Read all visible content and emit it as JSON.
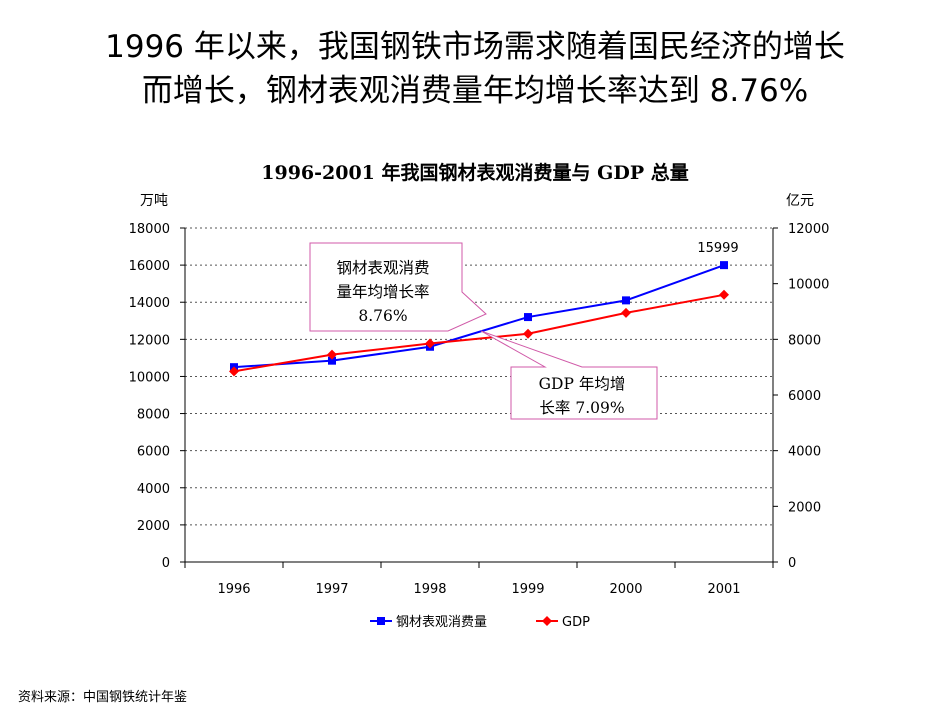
{
  "headline": {
    "line1": "1996 年以来，我国钢铁市场需求随着国民经济的增长",
    "line2": "而增长，钢材表观消费量年均增长率达到 8.76%"
  },
  "chart_data": {
    "type": "line",
    "title": "1996-2001 年我国钢材表观消费量与 GDP 总量",
    "categories": [
      "1996",
      "1997",
      "1998",
      "1999",
      "2000",
      "2001"
    ],
    "y_left": {
      "unit": "万吨",
      "range": [
        0,
        18000
      ],
      "ticks": [
        "0",
        "2000",
        "4000",
        "6000",
        "8000",
        "10000",
        "12000",
        "14000",
        "16000",
        "18000"
      ]
    },
    "y_right": {
      "unit": "亿元",
      "range": [
        0,
        12000
      ],
      "ticks": [
        "0",
        "2000",
        "4000",
        "6000",
        "8000",
        "10000",
        "12000"
      ]
    },
    "grid": "horizontal dotted",
    "series": [
      {
        "name": "钢材表观消费量",
        "axis": "left",
        "color": "#0000ff",
        "marker": "square",
        "values": [
          10500,
          10850,
          11600,
          13200,
          14100,
          15999
        ]
      },
      {
        "name": "GDP",
        "axis": "right",
        "color": "#ff0000",
        "marker": "diamond",
        "values": [
          6850,
          7450,
          7850,
          8200,
          8950,
          9600
        ]
      }
    ],
    "data_labels": [
      {
        "series": 0,
        "index": 5,
        "text": "15999"
      }
    ],
    "legend": {
      "position": "bottom"
    },
    "annotations": [
      {
        "lines": [
          "钢材表观消费",
          "量年均增长率",
          "8.76%"
        ]
      },
      {
        "lines": [
          "GDP 年均增",
          "长率 7.09%"
        ]
      }
    ]
  },
  "source": "资料来源：中国钢铁统计年鉴"
}
